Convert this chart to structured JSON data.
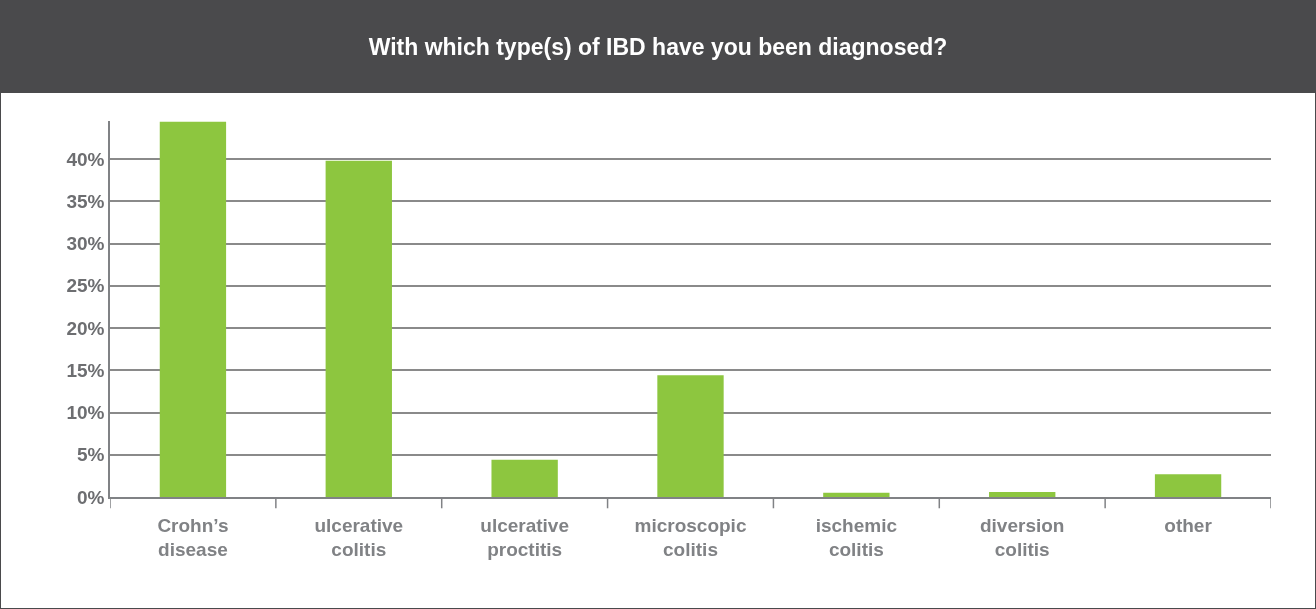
{
  "chart_data": {
    "type": "bar",
    "title": "With which type(s) of IBD have you been diagnosed?",
    "categories": [
      "Crohn’s disease",
      "ulcerative colitis",
      "ulcerative proctitis",
      "microscopic colitis",
      "ischemic colitis",
      "diversion colitis",
      "other"
    ],
    "values": [
      44.4,
      39.8,
      4.4,
      14.4,
      0.5,
      0.6,
      2.7
    ],
    "color": "#8dc63f",
    "ylim": [
      0,
      44.5
    ],
    "yticks": [
      {
        "value": 0,
        "label": "0%"
      },
      {
        "value": 5,
        "label": "5%"
      },
      {
        "value": 10,
        "label": "10%"
      },
      {
        "value": 15,
        "label": "15%"
      },
      {
        "value": 20,
        "label": "20%"
      },
      {
        "value": 25,
        "label": "25%"
      },
      {
        "value": 30,
        "label": "30%"
      },
      {
        "value": 35,
        "label": "35%"
      },
      {
        "value": 40,
        "label": "40%"
      }
    ],
    "grid": "y"
  }
}
